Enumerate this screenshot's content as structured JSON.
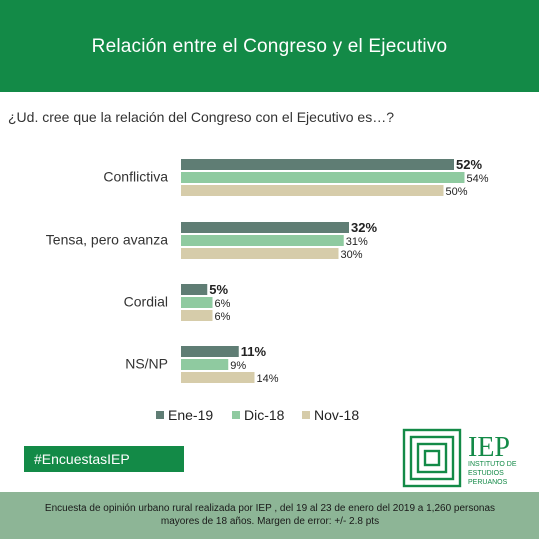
{
  "header": {
    "title": "Relación entre el Congreso y el Ejecutivo"
  },
  "question": "¿Ud. cree que la relación del Congreso con el Ejecutivo es…?",
  "chart_data": {
    "type": "bar",
    "orientation": "horizontal",
    "categories": [
      "Conflictiva",
      "Tensa, pero avanza",
      "Cordial",
      "NS/NP"
    ],
    "series": [
      {
        "name": "Ene-19",
        "values": [
          52,
          32,
          5,
          11
        ],
        "labels": [
          "52%",
          "32%",
          "5%",
          "11%"
        ],
        "color": "#5f7d74"
      },
      {
        "name": "Dic-18",
        "values": [
          54,
          31,
          6,
          9
        ],
        "labels": [
          "54%",
          "31%",
          "6%",
          "9%"
        ],
        "color": "#8fcaa0"
      },
      {
        "name": "Nov-18",
        "values": [
          50,
          30,
          6,
          14
        ],
        "labels": [
          "50%",
          "30%",
          "6%",
          "14%"
        ],
        "color": "#d6ccaa"
      }
    ],
    "legend_position": "bottom",
    "grid": false
  },
  "hashtag": "#EncuestasIEP",
  "logo": {
    "letters": "IEP",
    "line1": "INSTITUTO DE",
    "line2": "ESTUDIOS",
    "line3": "PERUANOS",
    "color": "#138a47"
  },
  "footer": {
    "line1": "Encuesta de opinión urbano rural realizada por IEP , del 19 al 23 de enero del 2019 a 1,260 personas",
    "line2": "mayores de 18 años. Margen de error: +/- 2.8 pts"
  }
}
